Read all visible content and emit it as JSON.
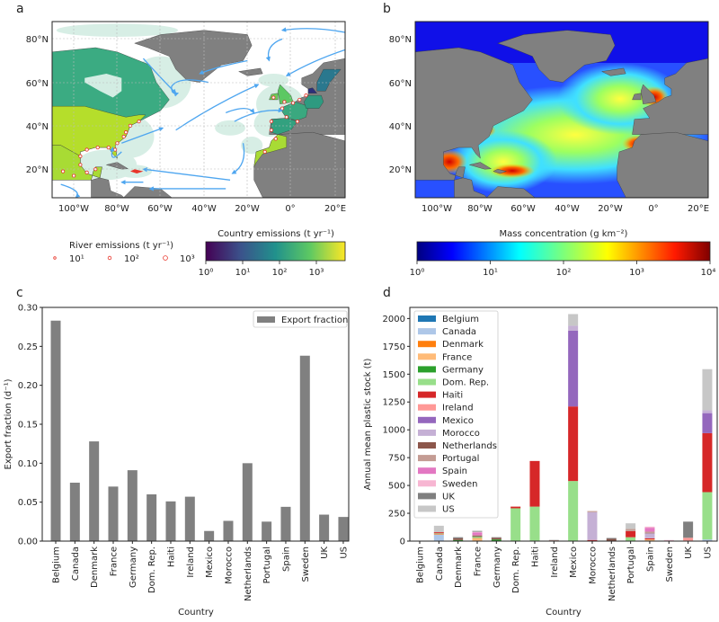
{
  "panels": {
    "a": "a",
    "b": "b",
    "c": "c",
    "d": "d"
  },
  "maps": {
    "lon_ticks": [
      "100°W",
      "80°W",
      "60°W",
      "40°W",
      "20°W",
      "0°",
      "20°E"
    ],
    "lat_ticks": [
      "80°N",
      "60°N",
      "40°N",
      "20°N"
    ],
    "a": {
      "colorbar_label": "Country emissions (t yr⁻¹)",
      "colorbar_ticks": [
        "10⁰",
        "10¹",
        "10²",
        "10³"
      ],
      "colormap": "viridis",
      "river_legend": {
        "title": "River emissions (t yr⁻¹)",
        "entries": [
          "10¹",
          "10²",
          "10³"
        ]
      }
    },
    "b": {
      "colorbar_label": "Mass concentration (g km⁻²)",
      "colorbar_ticks": [
        "10⁰",
        "10¹",
        "10²",
        "10³",
        "10⁴"
      ],
      "colormap": "jet"
    }
  },
  "chart_data": [
    {
      "type": "bar",
      "panel": "c",
      "categories": [
        "Belgium",
        "Canada",
        "Denmark",
        "France",
        "Germany",
        "Dom. Rep.",
        "Haiti",
        "Ireland",
        "Mexico",
        "Morocco",
        "Netherlands",
        "Portugal",
        "Spain",
        "Sweden",
        "UK",
        "US"
      ],
      "values": [
        0.283,
        0.075,
        0.128,
        0.07,
        0.091,
        0.06,
        0.051,
        0.057,
        0.013,
        0.026,
        0.1,
        0.025,
        0.044,
        0.238,
        0.034,
        0.031
      ],
      "series_name": "Export fraction",
      "color": "#808080",
      "xlabel": "Country",
      "ylabel": "Export fraction (d⁻¹)",
      "ylim": [
        0,
        0.3
      ],
      "yticks": [
        "0.00",
        "0.05",
        "0.10",
        "0.15",
        "0.20",
        "0.25",
        "0.30"
      ],
      "legend": "top-right"
    },
    {
      "type": "bar",
      "stacked": true,
      "panel": "d",
      "categories": [
        "Belgium",
        "Canada",
        "Denmark",
        "France",
        "Germany",
        "Dom. Rep.",
        "Haiti",
        "Ireland",
        "Mexico",
        "Morocco",
        "Netherlands",
        "Portugal",
        "Spain",
        "Sweden",
        "UK",
        "US"
      ],
      "xlabel": "Country",
      "ylabel": "Annual mean plastic stock (t)",
      "ylim": [
        0,
        2100
      ],
      "yticks": [
        "0",
        "250",
        "500",
        "750",
        "1000",
        "1250",
        "1500",
        "1750",
        "2000"
      ],
      "legend": "top-left",
      "series": [
        {
          "name": "Belgium",
          "color": "#1f77b4",
          "values": [
            0,
            0,
            0,
            0,
            0,
            0,
            0,
            0,
            0,
            0,
            0,
            0,
            0,
            0,
            0,
            0
          ]
        },
        {
          "name": "Canada",
          "color": "#aec7e8",
          "values": [
            0,
            60,
            0,
            0,
            0,
            0,
            0,
            0,
            0,
            0,
            0,
            0,
            0,
            0,
            0,
            15
          ]
        },
        {
          "name": "Denmark",
          "color": "#ff7f0e",
          "values": [
            0,
            5,
            0,
            0,
            0,
            0,
            0,
            0,
            0,
            0,
            0,
            0,
            0,
            0,
            0,
            0
          ]
        },
        {
          "name": "France",
          "color": "#ffbb78",
          "values": [
            0,
            0,
            0,
            30,
            0,
            0,
            0,
            0,
            0,
            0,
            0,
            0,
            15,
            0,
            0,
            0
          ]
        },
        {
          "name": "Germany",
          "color": "#2ca02c",
          "values": [
            0,
            0,
            10,
            5,
            15,
            0,
            0,
            0,
            0,
            0,
            0,
            0,
            0,
            0,
            0,
            0
          ]
        },
        {
          "name": "Dom. Rep.",
          "color": "#98df8a",
          "values": [
            0,
            5,
            0,
            5,
            0,
            295,
            310,
            0,
            540,
            0,
            0,
            35,
            0,
            0,
            0,
            425
          ]
        },
        {
          "name": "Haiti",
          "color": "#d62728",
          "values": [
            0,
            10,
            0,
            0,
            0,
            15,
            410,
            0,
            670,
            10,
            0,
            55,
            10,
            0,
            5,
            530
          ]
        },
        {
          "name": "Ireland",
          "color": "#ff9896",
          "values": [
            0,
            0,
            0,
            0,
            0,
            0,
            0,
            3,
            0,
            0,
            0,
            0,
            0,
            0,
            25,
            0
          ]
        },
        {
          "name": "Mexico",
          "color": "#9467bd",
          "values": [
            0,
            0,
            0,
            0,
            0,
            0,
            0,
            0,
            680,
            0,
            0,
            0,
            0,
            0,
            0,
            180
          ]
        },
        {
          "name": "Morocco",
          "color": "#c5b0d5",
          "values": [
            0,
            0,
            0,
            0,
            0,
            0,
            0,
            0,
            45,
            250,
            0,
            0,
            45,
            0,
            0,
            25
          ]
        },
        {
          "name": "Netherlands",
          "color": "#8c564b",
          "values": [
            0,
            0,
            15,
            8,
            15,
            0,
            0,
            0,
            0,
            0,
            20,
            0,
            5,
            5,
            0,
            0
          ]
        },
        {
          "name": "Portugal",
          "color": "#c49c94",
          "values": [
            0,
            0,
            0,
            5,
            0,
            0,
            0,
            5,
            0,
            10,
            0,
            20,
            10,
            0,
            0,
            0
          ]
        },
        {
          "name": "Spain",
          "color": "#e377c2",
          "values": [
            0,
            0,
            0,
            25,
            0,
            0,
            0,
            0,
            0,
            0,
            0,
            0,
            35,
            0,
            0,
            0
          ]
        },
        {
          "name": "Sweden",
          "color": "#f7b6d2",
          "values": [
            0,
            0,
            0,
            5,
            0,
            0,
            0,
            0,
            0,
            0,
            0,
            0,
            10,
            5,
            0,
            0
          ]
        },
        {
          "name": "UK",
          "color": "#7f7f7f",
          "values": [
            0,
            0,
            10,
            5,
            5,
            0,
            0,
            2,
            0,
            0,
            8,
            0,
            0,
            0,
            145,
            0
          ]
        },
        {
          "name": "US",
          "color": "#c7c7c7",
          "values": [
            0,
            58,
            0,
            7,
            0,
            0,
            0,
            0,
            105,
            0,
            0,
            50,
            0,
            0,
            0,
            370
          ]
        }
      ]
    }
  ]
}
